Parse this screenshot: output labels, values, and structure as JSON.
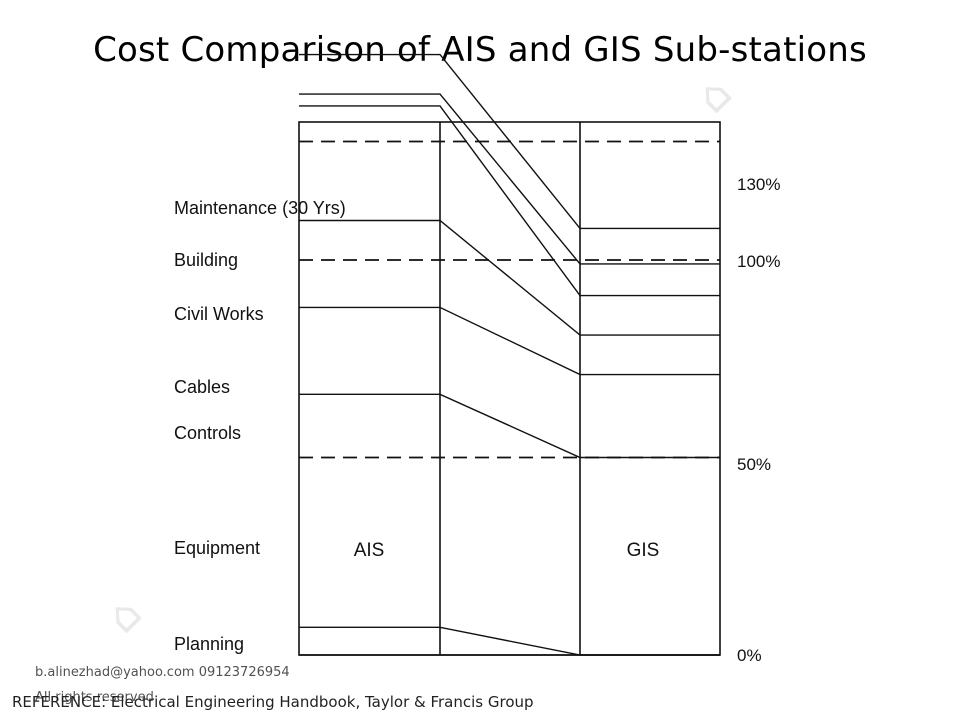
{
  "title": "Cost Comparison of AIS and GIS Sub-stations",
  "diagram": {
    "columns": [
      {
        "name": "AIS",
        "label": "AIS"
      },
      {
        "name": "GIS",
        "label": "GIS"
      }
    ],
    "categories": [
      {
        "key": "maintenance",
        "label": "Maintenance (30 Yrs)"
      },
      {
        "key": "building",
        "label": "Building"
      },
      {
        "key": "civil_works",
        "label": "Civil Works"
      },
      {
        "key": "cables",
        "label": "Cables"
      },
      {
        "key": "controls",
        "label": "Controls"
      },
      {
        "key": "equipment",
        "label": "Equipment"
      },
      {
        "key": "planning",
        "label": "Planning"
      }
    ],
    "reference_lines": [
      {
        "label": "130%",
        "value": 130
      },
      {
        "label": "100%",
        "value": 100
      },
      {
        "label": "50%",
        "value": 50
      },
      {
        "label": "0%",
        "value": 0
      }
    ],
    "ais_boundaries_percent": [
      0,
      7,
      66,
      88,
      110,
      139,
      142,
      152
    ],
    "gis_boundaries_percent": [
      0,
      0,
      50,
      71,
      81,
      91,
      99,
      108
    ]
  },
  "footer": {
    "email": "b.alinezhad@yahoo.com 09123726954",
    "rights": "All rights reserved",
    "reference": "REFERENCE: Electrical Engineering Handbook, Taylor & Francis Group"
  },
  "colors": {
    "line": "#111111",
    "dash": "#111111",
    "background": "#ffffff"
  }
}
